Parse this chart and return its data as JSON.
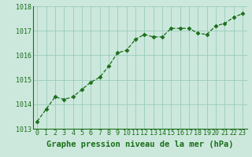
{
  "x": [
    0,
    1,
    2,
    3,
    4,
    5,
    6,
    7,
    8,
    9,
    10,
    11,
    12,
    13,
    14,
    15,
    16,
    17,
    18,
    19,
    20,
    21,
    22,
    23
  ],
  "y": [
    1013.3,
    1013.8,
    1014.3,
    1014.2,
    1014.3,
    1014.6,
    1014.9,
    1015.1,
    1015.55,
    1016.1,
    1016.2,
    1016.65,
    1016.85,
    1016.75,
    1016.75,
    1017.1,
    1017.1,
    1017.1,
    1016.9,
    1016.85,
    1017.2,
    1017.3,
    1017.55,
    1017.7
  ],
  "line_color": "#1a6e1a",
  "marker": "D",
  "marker_size": 2.5,
  "bg_color": "#cce8dc",
  "grid_color": "#99ccbb",
  "xlabel": "Graphe pression niveau de la mer (hPa)",
  "xlabel_color": "#1a6e1a",
  "xlabel_fontsize": 7.5,
  "tick_color": "#1a6e1a",
  "tick_fontsize": 6.0,
  "ylim": [
    1013.0,
    1018.0
  ],
  "xlim": [
    -0.5,
    23.5
  ],
  "yticks": [
    1013,
    1014,
    1015,
    1016,
    1017,
    1018
  ],
  "xticks": [
    0,
    1,
    2,
    3,
    4,
    5,
    6,
    7,
    8,
    9,
    10,
    11,
    12,
    13,
    14,
    15,
    16,
    17,
    18,
    19,
    20,
    21,
    22,
    23
  ]
}
